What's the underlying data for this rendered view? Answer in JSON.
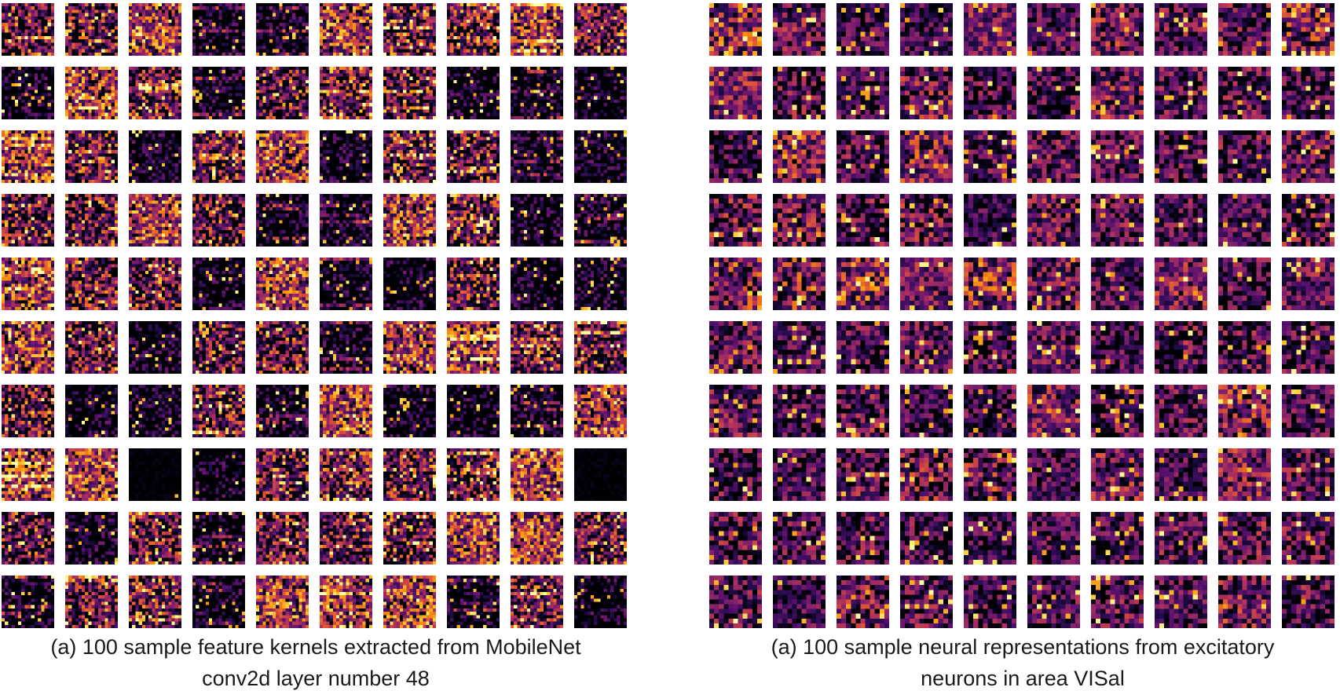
{
  "figure": {
    "left_panel": {
      "caption_line1": "(a) 100 sample feature kernels extracted from MobileNet",
      "caption_line2": "conv2d layer number 48",
      "tile_count": 100,
      "colormap": "inferno"
    },
    "right_panel": {
      "caption_line1": "(a) 100 sample neural representations from excitatory",
      "caption_line2": "neurons in area VISal",
      "tile_count": 100,
      "colormap": "inferno"
    },
    "grid": {
      "rows": 10,
      "cols": 10
    },
    "colors": {
      "dark": "#000004",
      "purple": "#3b0f70",
      "magenta": "#8c2981",
      "pink": "#de4968",
      "orange": "#fe9f6d",
      "yellow": "#fcfdbf"
    }
  }
}
